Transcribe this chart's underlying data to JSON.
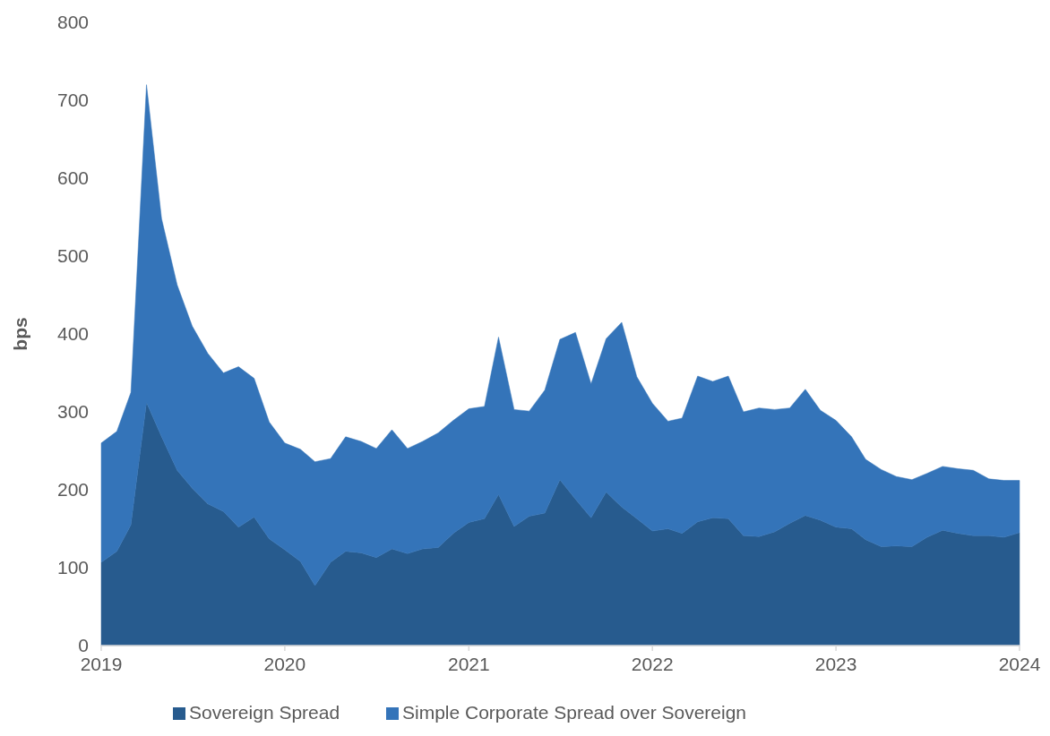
{
  "chart_data": {
    "type": "area",
    "stacked": true,
    "ylabel": "bps",
    "legend": "bottom",
    "grid": false,
    "x": [
      "2019-01",
      "2019-02",
      "2019-03",
      "2019-04",
      "2019-05",
      "2019-06",
      "2019-07",
      "2019-08",
      "2019-09",
      "2019-10",
      "2019-11",
      "2019-12",
      "2020-01",
      "2020-02",
      "2020-03",
      "2020-04",
      "2020-05",
      "2020-06",
      "2020-07",
      "2020-08",
      "2020-09",
      "2020-10",
      "2020-11",
      "2020-12",
      "2021-01",
      "2021-02",
      "2021-03",
      "2021-04",
      "2021-05",
      "2021-06",
      "2021-07",
      "2021-08",
      "2021-09",
      "2021-10",
      "2021-11",
      "2021-12",
      "2022-01",
      "2022-02",
      "2022-03",
      "2022-04",
      "2022-05",
      "2022-06",
      "2022-07",
      "2022-08",
      "2022-09",
      "2022-10",
      "2022-11",
      "2022-12",
      "2023-01",
      "2023-02",
      "2023-03",
      "2023-04",
      "2023-05",
      "2023-06",
      "2023-07",
      "2023-08",
      "2023-09",
      "2023-10",
      "2023-11",
      "2023-12",
      "2024-01"
    ],
    "series": [
      {
        "name": "Sovereign Spread",
        "color": "#275b8e",
        "values": [
          107,
          121,
          155,
          312,
          268,
          225,
          202,
          182,
          172,
          152,
          165,
          137,
          123,
          108,
          77,
          107,
          121,
          119,
          113,
          124,
          118,
          124,
          126,
          144,
          158,
          163,
          194,
          153,
          166,
          170,
          213,
          188,
          164,
          197,
          178,
          163,
          147,
          150,
          144,
          159,
          164,
          163,
          141,
          140,
          146,
          157,
          167,
          161,
          152,
          150,
          136,
          127,
          128,
          127,
          139,
          148,
          144,
          141,
          141,
          139,
          145
        ]
      },
      {
        "name": "Simple Corporate Spread over Sovereign",
        "color": "#3474b9",
        "values": [
          153,
          154,
          170,
          408,
          280,
          238,
          208,
          193,
          178,
          206,
          178,
          150,
          137,
          144,
          159,
          133,
          147,
          143,
          140,
          153,
          135,
          138,
          147,
          145,
          146,
          144,
          202,
          150,
          135,
          158,
          180,
          214,
          172,
          197,
          237,
          182,
          164,
          138,
          148,
          187,
          175,
          183,
          159,
          165,
          157,
          148,
          162,
          141,
          137,
          118,
          103,
          99,
          89,
          86,
          82,
          82,
          83,
          84,
          73,
          73,
          67
        ]
      }
    ],
    "xlim": [
      "2019-01",
      "2024-01"
    ],
    "xticks": [
      {
        "value": "2019-01",
        "label": "2019"
      },
      {
        "value": "2020-01",
        "label": "2020"
      },
      {
        "value": "2021-01",
        "label": "2021"
      },
      {
        "value": "2022-01",
        "label": "2022"
      },
      {
        "value": "2023-01",
        "label": "2023"
      },
      {
        "value": "2024-01",
        "label": "2024"
      }
    ],
    "ylim": [
      0,
      800
    ],
    "yticks": [
      0,
      100,
      200,
      300,
      400,
      500,
      600,
      700,
      800
    ]
  }
}
